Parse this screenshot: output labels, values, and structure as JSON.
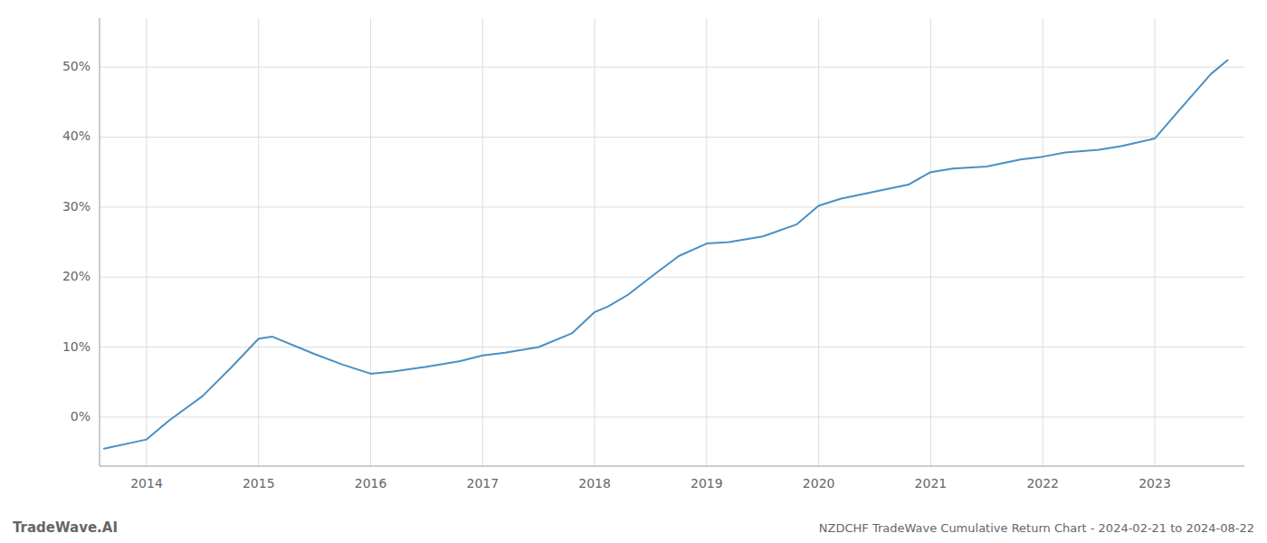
{
  "chart_data": {
    "type": "line",
    "title": "NZDCHF TradeWave Cumulative Return Chart - 2024-02-21 to 2024-08-22",
    "annotations": [
      "TradeWave.AI"
    ],
    "color": "#4a90c4",
    "x": [
      2013.62,
      2014.0,
      2014.2,
      2014.5,
      2014.75,
      2015.0,
      2015.12,
      2015.5,
      2015.75,
      2016.0,
      2016.2,
      2016.5,
      2016.8,
      2017.0,
      2017.2,
      2017.5,
      2017.8,
      2018.0,
      2018.12,
      2018.3,
      2018.5,
      2018.75,
      2019.0,
      2019.2,
      2019.5,
      2019.8,
      2020.0,
      2020.2,
      2020.5,
      2020.8,
      2021.0,
      2021.2,
      2021.5,
      2021.8,
      2022.0,
      2022.2,
      2022.5,
      2022.7,
      2023.0,
      2023.2,
      2023.5,
      2023.65
    ],
    "values": [
      -4.5,
      -3.2,
      -0.5,
      3.0,
      7.0,
      11.2,
      11.5,
      9.0,
      7.5,
      6.2,
      6.5,
      7.2,
      8.0,
      8.8,
      9.2,
      10.0,
      12.0,
      15.0,
      15.8,
      17.5,
      20.0,
      23.0,
      24.8,
      25.0,
      25.8,
      27.5,
      30.2,
      31.2,
      32.2,
      33.2,
      35.0,
      35.5,
      35.8,
      36.8,
      37.2,
      37.8,
      38.2,
      38.7,
      39.8,
      43.5,
      49.0,
      51.0
    ],
    "xlim": [
      2013.58,
      2023.8
    ],
    "ylim": [
      -7,
      57
    ],
    "xticks": [
      2014,
      2015,
      2016,
      2017,
      2018,
      2019,
      2020,
      2021,
      2022,
      2023
    ],
    "yticks": [
      {
        "value": 0,
        "label": "0%"
      },
      {
        "value": 10,
        "label": "10%"
      },
      {
        "value": 20,
        "label": "20%"
      },
      {
        "value": 30,
        "label": "30%"
      },
      {
        "value": 40,
        "label": "40%"
      },
      {
        "value": 50,
        "label": "50%"
      }
    ],
    "grid": true
  }
}
